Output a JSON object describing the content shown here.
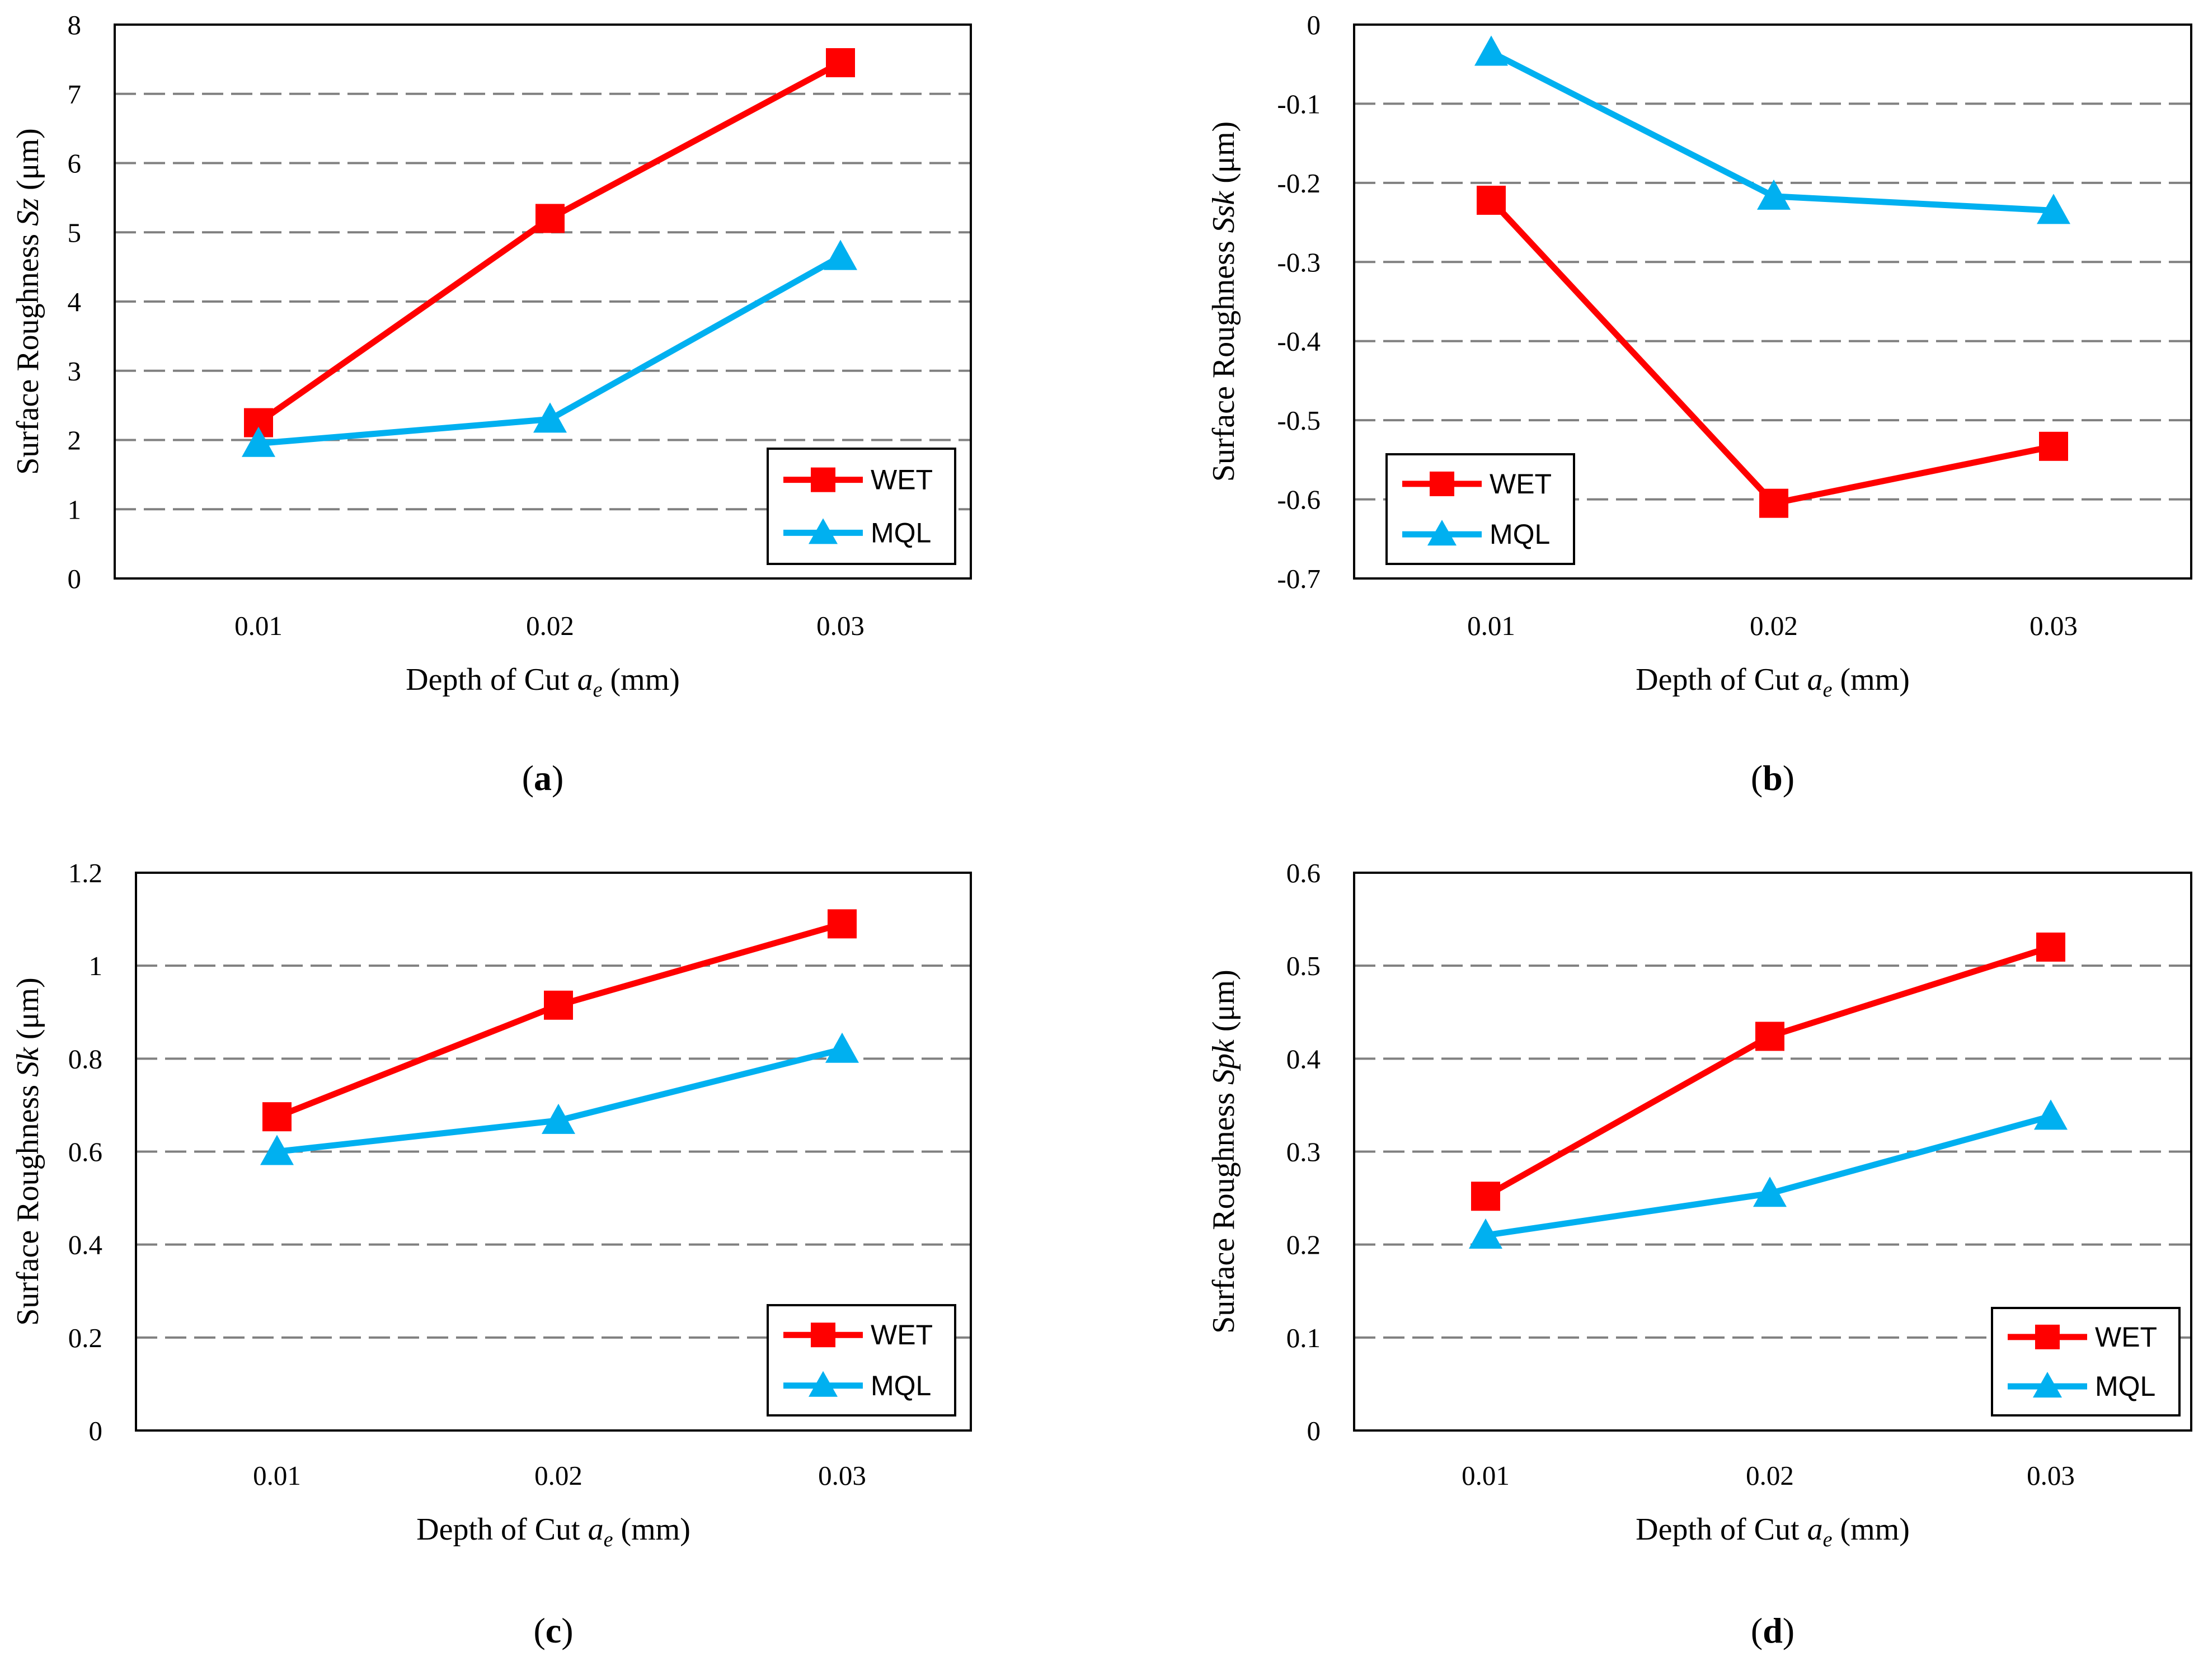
{
  "figure": {
    "panel_count": 4
  },
  "colors": {
    "wet": "#ff0000",
    "mql": "#00b0f0",
    "grid": "#808080",
    "axis": "#000000"
  },
  "chart_data": [
    {
      "panel": "a",
      "type": "line",
      "categories": [
        "0.01",
        "0.02",
        "0.03"
      ],
      "series": [
        {
          "name": "WET",
          "marker": "square",
          "values": [
            2.25,
            5.2,
            7.45
          ]
        },
        {
          "name": "MQL",
          "marker": "triangle",
          "values": [
            1.95,
            2.3,
            4.65
          ]
        }
      ],
      "ylim": [
        0,
        8
      ],
      "yticks": [
        0,
        1,
        2,
        3,
        4,
        5,
        6,
        7,
        8
      ],
      "ytick_labels": [
        "0",
        "1",
        "2",
        "3",
        "4",
        "5",
        "6",
        "7",
        "8"
      ],
      "ylabel": {
        "prefix": "Surface Roughness ",
        "italic": "Sz",
        "suffix": " (μm)"
      },
      "xlabel": {
        "prefix": "Depth of Cut ",
        "var": "a",
        "sub": "e",
        "suffix": " (mm)"
      },
      "caption": "a",
      "grid": "dashed horizontal",
      "legend_position": "bottom-right"
    },
    {
      "panel": "b",
      "type": "line",
      "categories": [
        "0.01",
        "0.02",
        "0.03"
      ],
      "series": [
        {
          "name": "WET",
          "marker": "square",
          "values": [
            -0.222,
            -0.605,
            -0.533
          ]
        },
        {
          "name": "MQL",
          "marker": "triangle",
          "values": [
            -0.035,
            -0.217,
            -0.235
          ]
        }
      ],
      "ylim": [
        -0.7,
        0
      ],
      "yticks": [
        0,
        -0.1,
        -0.2,
        -0.3,
        -0.4,
        -0.5,
        -0.6,
        -0.7
      ],
      "ytick_labels": [
        "0",
        "-0.1",
        "-0.2",
        "-0.3",
        "-0.4",
        "-0.5",
        "-0.6",
        "-0.7"
      ],
      "ylabel": {
        "prefix": "Surface Roughness ",
        "italic": "Ssk",
        "suffix": " (μm)"
      },
      "xlabel": {
        "prefix": "Depth of Cut ",
        "var": "a",
        "sub": "e",
        "suffix": " (mm)"
      },
      "caption": "b",
      "grid": "dashed horizontal",
      "legend_position": "bottom-left"
    },
    {
      "panel": "c",
      "type": "line",
      "categories": [
        "0.01",
        "0.02",
        "0.03"
      ],
      "series": [
        {
          "name": "WET",
          "marker": "square",
          "values": [
            0.675,
            0.915,
            1.09
          ]
        },
        {
          "name": "MQL",
          "marker": "triangle",
          "values": [
            0.6,
            0.667,
            0.82
          ]
        }
      ],
      "ylim": [
        0,
        1.2
      ],
      "yticks": [
        0,
        0.2,
        0.4,
        0.6,
        0.8,
        1,
        1.2
      ],
      "ytick_labels": [
        "0",
        "0.2",
        "0.4",
        "0.6",
        "0.8",
        "1",
        "1.2"
      ],
      "ylabel": {
        "prefix": "Surface Roughness ",
        "italic": "Sk",
        "suffix": " (μm)"
      },
      "xlabel": {
        "prefix": "Depth of Cut ",
        "var": "a",
        "sub": "e",
        "suffix": " (mm)"
      },
      "caption": "c",
      "grid": "dashed horizontal",
      "legend_position": "bottom-right"
    },
    {
      "panel": "d",
      "type": "line",
      "categories": [
        "0.01",
        "0.02",
        "0.03"
      ],
      "series": [
        {
          "name": "WET",
          "marker": "square",
          "values": [
            0.252,
            0.424,
            0.52
          ]
        },
        {
          "name": "MQL",
          "marker": "triangle",
          "values": [
            0.21,
            0.255,
            0.338
          ]
        }
      ],
      "ylim": [
        0,
        0.6
      ],
      "yticks": [
        0,
        0.1,
        0.2,
        0.3,
        0.4,
        0.5,
        0.6
      ],
      "ytick_labels": [
        "0",
        "0.1",
        "0.2",
        "0.3",
        "0.4",
        "0.5",
        "0.6"
      ],
      "ylabel": {
        "prefix": "Surface Roughness ",
        "italic": "Spk",
        "suffix": " (μm)"
      },
      "xlabel": {
        "prefix": "Depth of Cut ",
        "var": "a",
        "sub": "e",
        "suffix": " (mm)"
      },
      "caption": "d",
      "grid": "dashed horizontal",
      "legend_position": "bottom-right"
    }
  ]
}
